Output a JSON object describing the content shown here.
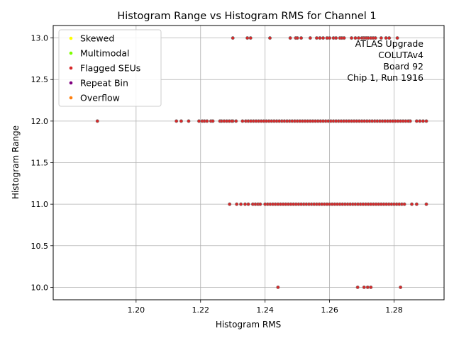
{
  "chart_data": {
    "type": "scatter",
    "title": "Histogram Range vs Histogram RMS for Channel 1",
    "xlabel": "Histogram RMS",
    "ylabel": "Histogram Range",
    "xlim": [
      1.1743,
      1.2955
    ],
    "ylim": [
      9.85,
      13.15
    ],
    "xticks": [
      1.2,
      1.22,
      1.24,
      1.26,
      1.28
    ],
    "xtick_labels": [
      "1.20",
      "1.22",
      "1.24",
      "1.26",
      "1.28"
    ],
    "yticks": [
      10.0,
      10.5,
      11.0,
      11.5,
      12.0,
      12.5,
      13.0
    ],
    "ytick_labels": [
      "10.0",
      "10.5",
      "11.0",
      "11.5",
      "12.0",
      "12.5",
      "13.0"
    ],
    "grid": true,
    "legend_position": "top-left",
    "legend": [
      {
        "label": "Skewed",
        "color": "#ffff00"
      },
      {
        "label": "Multimodal",
        "color": "#7fff00"
      },
      {
        "label": "Flagged SEUs",
        "color": "#d62728"
      },
      {
        "label": "Repeat Bin",
        "color": "#800080"
      },
      {
        "label": "Overflow",
        "color": "#ff7f0e"
      }
    ],
    "annotation": [
      "ATLAS Upgrade",
      "COLUTAv4",
      "Board 92",
      "Chip 1, Run 1916"
    ],
    "series": [
      {
        "name": "Flagged SEUs",
        "color": "#d62728",
        "points": [
          {
            "y": 13,
            "x": [
              1.23,
              1.2345,
              1.2355,
              1.2415,
              1.2478,
              1.2495,
              1.25,
              1.2512,
              1.254,
              1.256,
              1.257,
              1.258,
              1.2592,
              1.26,
              1.2612,
              1.262,
              1.2632,
              1.2638,
              1.2645,
              1.2668,
              1.268,
              1.269,
              1.27,
              1.2705,
              1.271,
              1.2715,
              1.272,
              1.2728,
              1.2735,
              1.2742,
              1.276,
              1.2775,
              1.2785,
              1.281
            ]
          },
          {
            "y": 12,
            "x": [
              1.188,
              1.2125,
              1.214,
              1.2163,
              1.2195,
              1.2205,
              1.2212,
              1.222,
              1.2232,
              1.2238,
              1.226,
              1.23,
              1.231,
              1.233,
              1.285,
              1.287,
              1.288,
              1.289,
              1.29
            ]
          },
          {
            "y": 12,
            "range": [
              1.2265,
              1.2298
            ],
            "step": 0.0008
          },
          {
            "y": 12,
            "range": [
              1.234,
              1.285
            ],
            "step": 0.0008
          },
          {
            "y": 11,
            "x": [
              1.229,
              1.2312,
              1.2325,
              1.2338,
              1.2348,
              1.2362,
              1.237,
              1.2378,
              1.2385,
              1.2855,
              1.287,
              1.29
            ]
          },
          {
            "y": 11,
            "range": [
              1.24,
              1.2833
            ],
            "step": 0.0008
          },
          {
            "y": 10,
            "x": [
              1.244,
              1.2687,
              1.2707,
              1.2718,
              1.2728,
              1.282
            ]
          }
        ]
      }
    ]
  }
}
